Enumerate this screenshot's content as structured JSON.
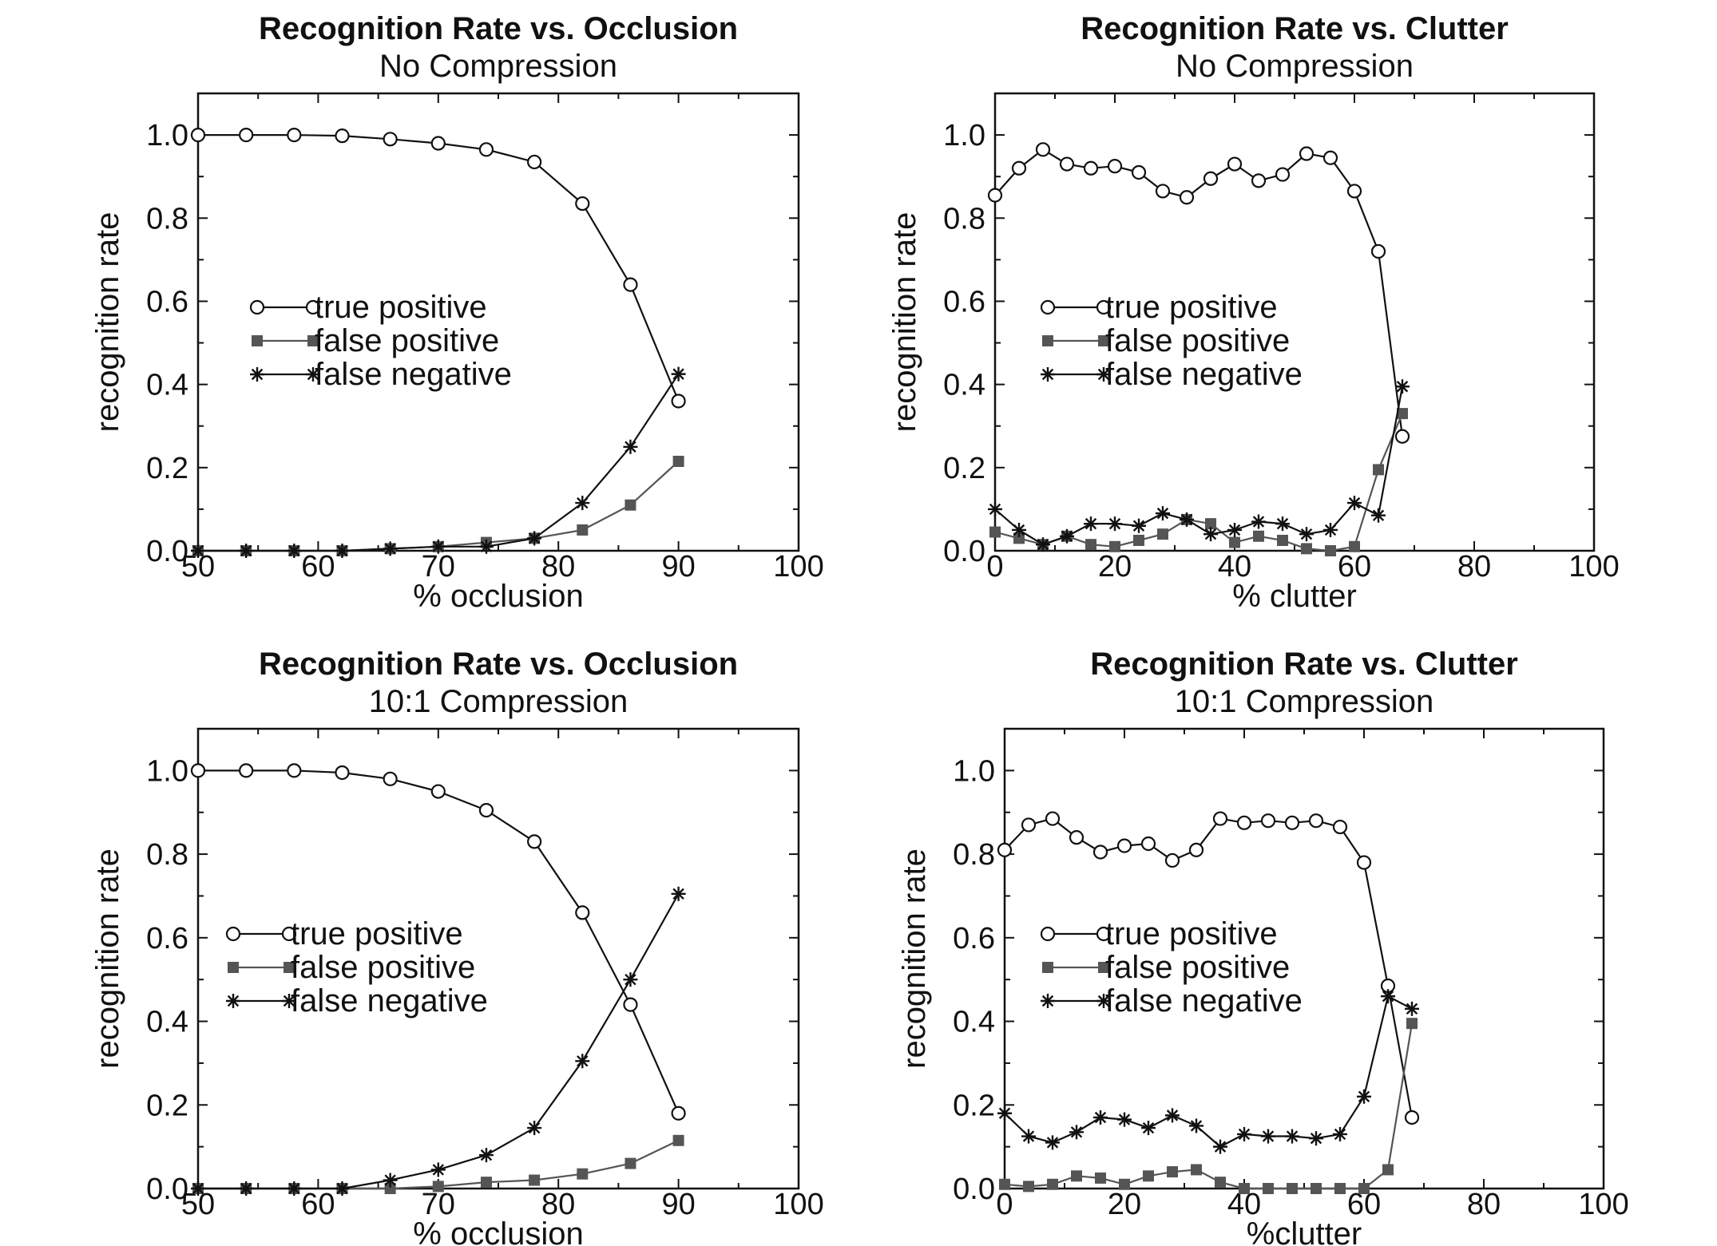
{
  "colors": {
    "ink": "#111111",
    "true_positive": "#111111",
    "false_positive": "#555555",
    "false_negative": "#111111",
    "background": "#ffffff"
  },
  "chart_data": [
    {
      "type": "line",
      "title": "Recognition Rate vs. Occlusion",
      "subtitle": "No Compression",
      "xlabel": "% occlusion",
      "ylabel": "recognition rate",
      "xlim": [
        50,
        100
      ],
      "ylim": [
        0,
        1.1
      ],
      "xticks": [
        50,
        60,
        70,
        80,
        90,
        100
      ],
      "xtick_labels": [
        "50",
        "60",
        "70",
        "80",
        "90",
        "100"
      ],
      "yticks": [
        0,
        0.2,
        0.4,
        0.6,
        0.8,
        1.0
      ],
      "ytick_labels": [
        "0.0",
        "0.2",
        "0.4",
        "0.6",
        "0.8",
        "1.0"
      ],
      "grid": false,
      "legend_position": "center-left",
      "series": [
        {
          "name": "true positive",
          "marker": "circle",
          "x": [
            50,
            54,
            58,
            62,
            66,
            70,
            74,
            78,
            82,
            86,
            90
          ],
          "y": [
            1.0,
            1.0,
            1.0,
            0.998,
            0.99,
            0.98,
            0.965,
            0.935,
            0.835,
            0.64,
            0.36
          ]
        },
        {
          "name": "false positive",
          "marker": "square",
          "x": [
            50,
            54,
            58,
            62,
            66,
            70,
            74,
            78,
            82,
            86,
            90
          ],
          "y": [
            0.0,
            0.0,
            0.0,
            0.0,
            0.005,
            0.01,
            0.02,
            0.03,
            0.05,
            0.11,
            0.215
          ]
        },
        {
          "name": "false negative",
          "marker": "star",
          "x": [
            50,
            54,
            58,
            62,
            66,
            70,
            74,
            78,
            82,
            86,
            90
          ],
          "y": [
            0.0,
            0.0,
            0.0,
            0.0,
            0.005,
            0.01,
            0.01,
            0.03,
            0.115,
            0.25,
            0.425
          ]
        }
      ]
    },
    {
      "type": "line",
      "title": "Recognition Rate vs. Clutter",
      "subtitle": "No Compression",
      "xlabel": "% clutter",
      "ylabel": "recognition rate",
      "xlim": [
        0,
        100
      ],
      "ylim": [
        0,
        1.1
      ],
      "xticks": [
        0,
        20,
        40,
        60,
        80,
        100
      ],
      "xtick_labels": [
        "0",
        "20",
        "40",
        "60",
        "80",
        "100"
      ],
      "yticks": [
        0,
        0.2,
        0.4,
        0.6,
        0.8,
        1.0
      ],
      "ytick_labels": [
        "0.0",
        "0.2",
        "0.4",
        "0.6",
        "0.8",
        "1.0"
      ],
      "grid": false,
      "legend_position": "center-left",
      "series": [
        {
          "name": "true positive",
          "marker": "circle",
          "x": [
            0,
            4,
            8,
            12,
            16,
            20,
            24,
            28,
            32,
            36,
            40,
            44,
            48,
            52,
            56,
            60,
            64,
            68
          ],
          "y": [
            0.855,
            0.92,
            0.965,
            0.93,
            0.92,
            0.925,
            0.91,
            0.865,
            0.85,
            0.895,
            0.93,
            0.89,
            0.905,
            0.955,
            0.945,
            0.865,
            0.72,
            0.275
          ]
        },
        {
          "name": "false positive",
          "marker": "square",
          "x": [
            0,
            4,
            8,
            12,
            16,
            20,
            24,
            28,
            32,
            36,
            40,
            44,
            48,
            52,
            56,
            60,
            64,
            68
          ],
          "y": [
            0.045,
            0.03,
            0.015,
            0.035,
            0.015,
            0.01,
            0.025,
            0.04,
            0.075,
            0.065,
            0.02,
            0.035,
            0.025,
            0.005,
            0.0,
            0.01,
            0.195,
            0.33
          ]
        },
        {
          "name": "false negative",
          "marker": "star",
          "x": [
            0,
            4,
            8,
            12,
            16,
            20,
            24,
            28,
            32,
            36,
            40,
            44,
            48,
            52,
            56,
            60,
            64,
            68
          ],
          "y": [
            0.1,
            0.05,
            0.015,
            0.035,
            0.065,
            0.065,
            0.06,
            0.09,
            0.075,
            0.04,
            0.05,
            0.07,
            0.065,
            0.04,
            0.05,
            0.115,
            0.085,
            0.395
          ]
        }
      ]
    },
    {
      "type": "line",
      "title": "Recognition Rate vs. Occlusion",
      "subtitle": "10:1 Compression",
      "xlabel": "% occlusion",
      "ylabel": "recognition rate",
      "xlim": [
        50,
        100
      ],
      "ylim": [
        0,
        1.1
      ],
      "xticks": [
        50,
        60,
        70,
        80,
        90,
        100
      ],
      "xtick_labels": [
        "50",
        "60",
        "70",
        "80",
        "90",
        "100"
      ],
      "yticks": [
        0,
        0.2,
        0.4,
        0.6,
        0.8,
        1.0
      ],
      "ytick_labels": [
        "0.0",
        "0.2",
        "0.4",
        "0.6",
        "0.8",
        "1.0"
      ],
      "grid": false,
      "legend_position": "center-left",
      "series": [
        {
          "name": "true positive",
          "marker": "circle",
          "x": [
            50,
            54,
            58,
            62,
            66,
            70,
            74,
            78,
            82,
            86,
            90
          ],
          "y": [
            1.0,
            1.0,
            1.0,
            0.995,
            0.98,
            0.95,
            0.905,
            0.83,
            0.66,
            0.44,
            0.18
          ]
        },
        {
          "name": "false positive",
          "marker": "square",
          "x": [
            50,
            54,
            58,
            62,
            66,
            70,
            74,
            78,
            82,
            86,
            90
          ],
          "y": [
            0.0,
            0.0,
            0.0,
            0.0,
            0.0,
            0.005,
            0.015,
            0.02,
            0.035,
            0.06,
            0.115
          ]
        },
        {
          "name": "false negative",
          "marker": "star",
          "x": [
            50,
            54,
            58,
            62,
            66,
            70,
            74,
            78,
            82,
            86,
            90
          ],
          "y": [
            0.0,
            0.0,
            0.0,
            0.0,
            0.02,
            0.045,
            0.08,
            0.145,
            0.305,
            0.5,
            0.705
          ]
        }
      ]
    },
    {
      "type": "line",
      "title": "Recognition Rate vs. Clutter",
      "subtitle": "10:1 Compression",
      "xlabel": "%clutter",
      "ylabel": "recognition rate",
      "xlim": [
        0,
        100
      ],
      "ylim": [
        0,
        1.1
      ],
      "xticks": [
        0,
        20,
        40,
        60,
        80,
        100
      ],
      "xtick_labels": [
        "0",
        "20",
        "40",
        "60",
        "80",
        "100"
      ],
      "yticks": [
        0,
        0.2,
        0.4,
        0.6,
        0.8,
        1.0
      ],
      "ytick_labels": [
        "0.0",
        "0.2",
        "0.4",
        "0.6",
        "0.8",
        "1.0"
      ],
      "grid": false,
      "legend_position": "center-left",
      "series": [
        {
          "name": "true positive",
          "marker": "circle",
          "x": [
            0,
            4,
            8,
            12,
            16,
            20,
            24,
            28,
            32,
            36,
            40,
            44,
            48,
            52,
            56,
            60,
            64,
            68
          ],
          "y": [
            0.81,
            0.87,
            0.885,
            0.84,
            0.805,
            0.82,
            0.825,
            0.785,
            0.81,
            0.885,
            0.875,
            0.88,
            0.875,
            0.88,
            0.865,
            0.78,
            0.485,
            0.17
          ]
        },
        {
          "name": "false positive",
          "marker": "square",
          "x": [
            0,
            4,
            8,
            12,
            16,
            20,
            24,
            28,
            32,
            36,
            40,
            44,
            48,
            52,
            56,
            60,
            64,
            68
          ],
          "y": [
            0.01,
            0.005,
            0.01,
            0.03,
            0.025,
            0.01,
            0.03,
            0.04,
            0.045,
            0.015,
            0.0,
            0.0,
            0.0,
            0.0,
            0.0,
            0.0,
            0.045,
            0.395
          ]
        },
        {
          "name": "false negative",
          "marker": "star",
          "x": [
            0,
            4,
            8,
            12,
            16,
            20,
            24,
            28,
            32,
            36,
            40,
            44,
            48,
            52,
            56,
            60,
            64,
            68
          ],
          "y": [
            0.18,
            0.125,
            0.11,
            0.135,
            0.17,
            0.165,
            0.145,
            0.175,
            0.15,
            0.1,
            0.13,
            0.125,
            0.125,
            0.12,
            0.13,
            0.22,
            0.46,
            0.43
          ]
        }
      ]
    }
  ]
}
